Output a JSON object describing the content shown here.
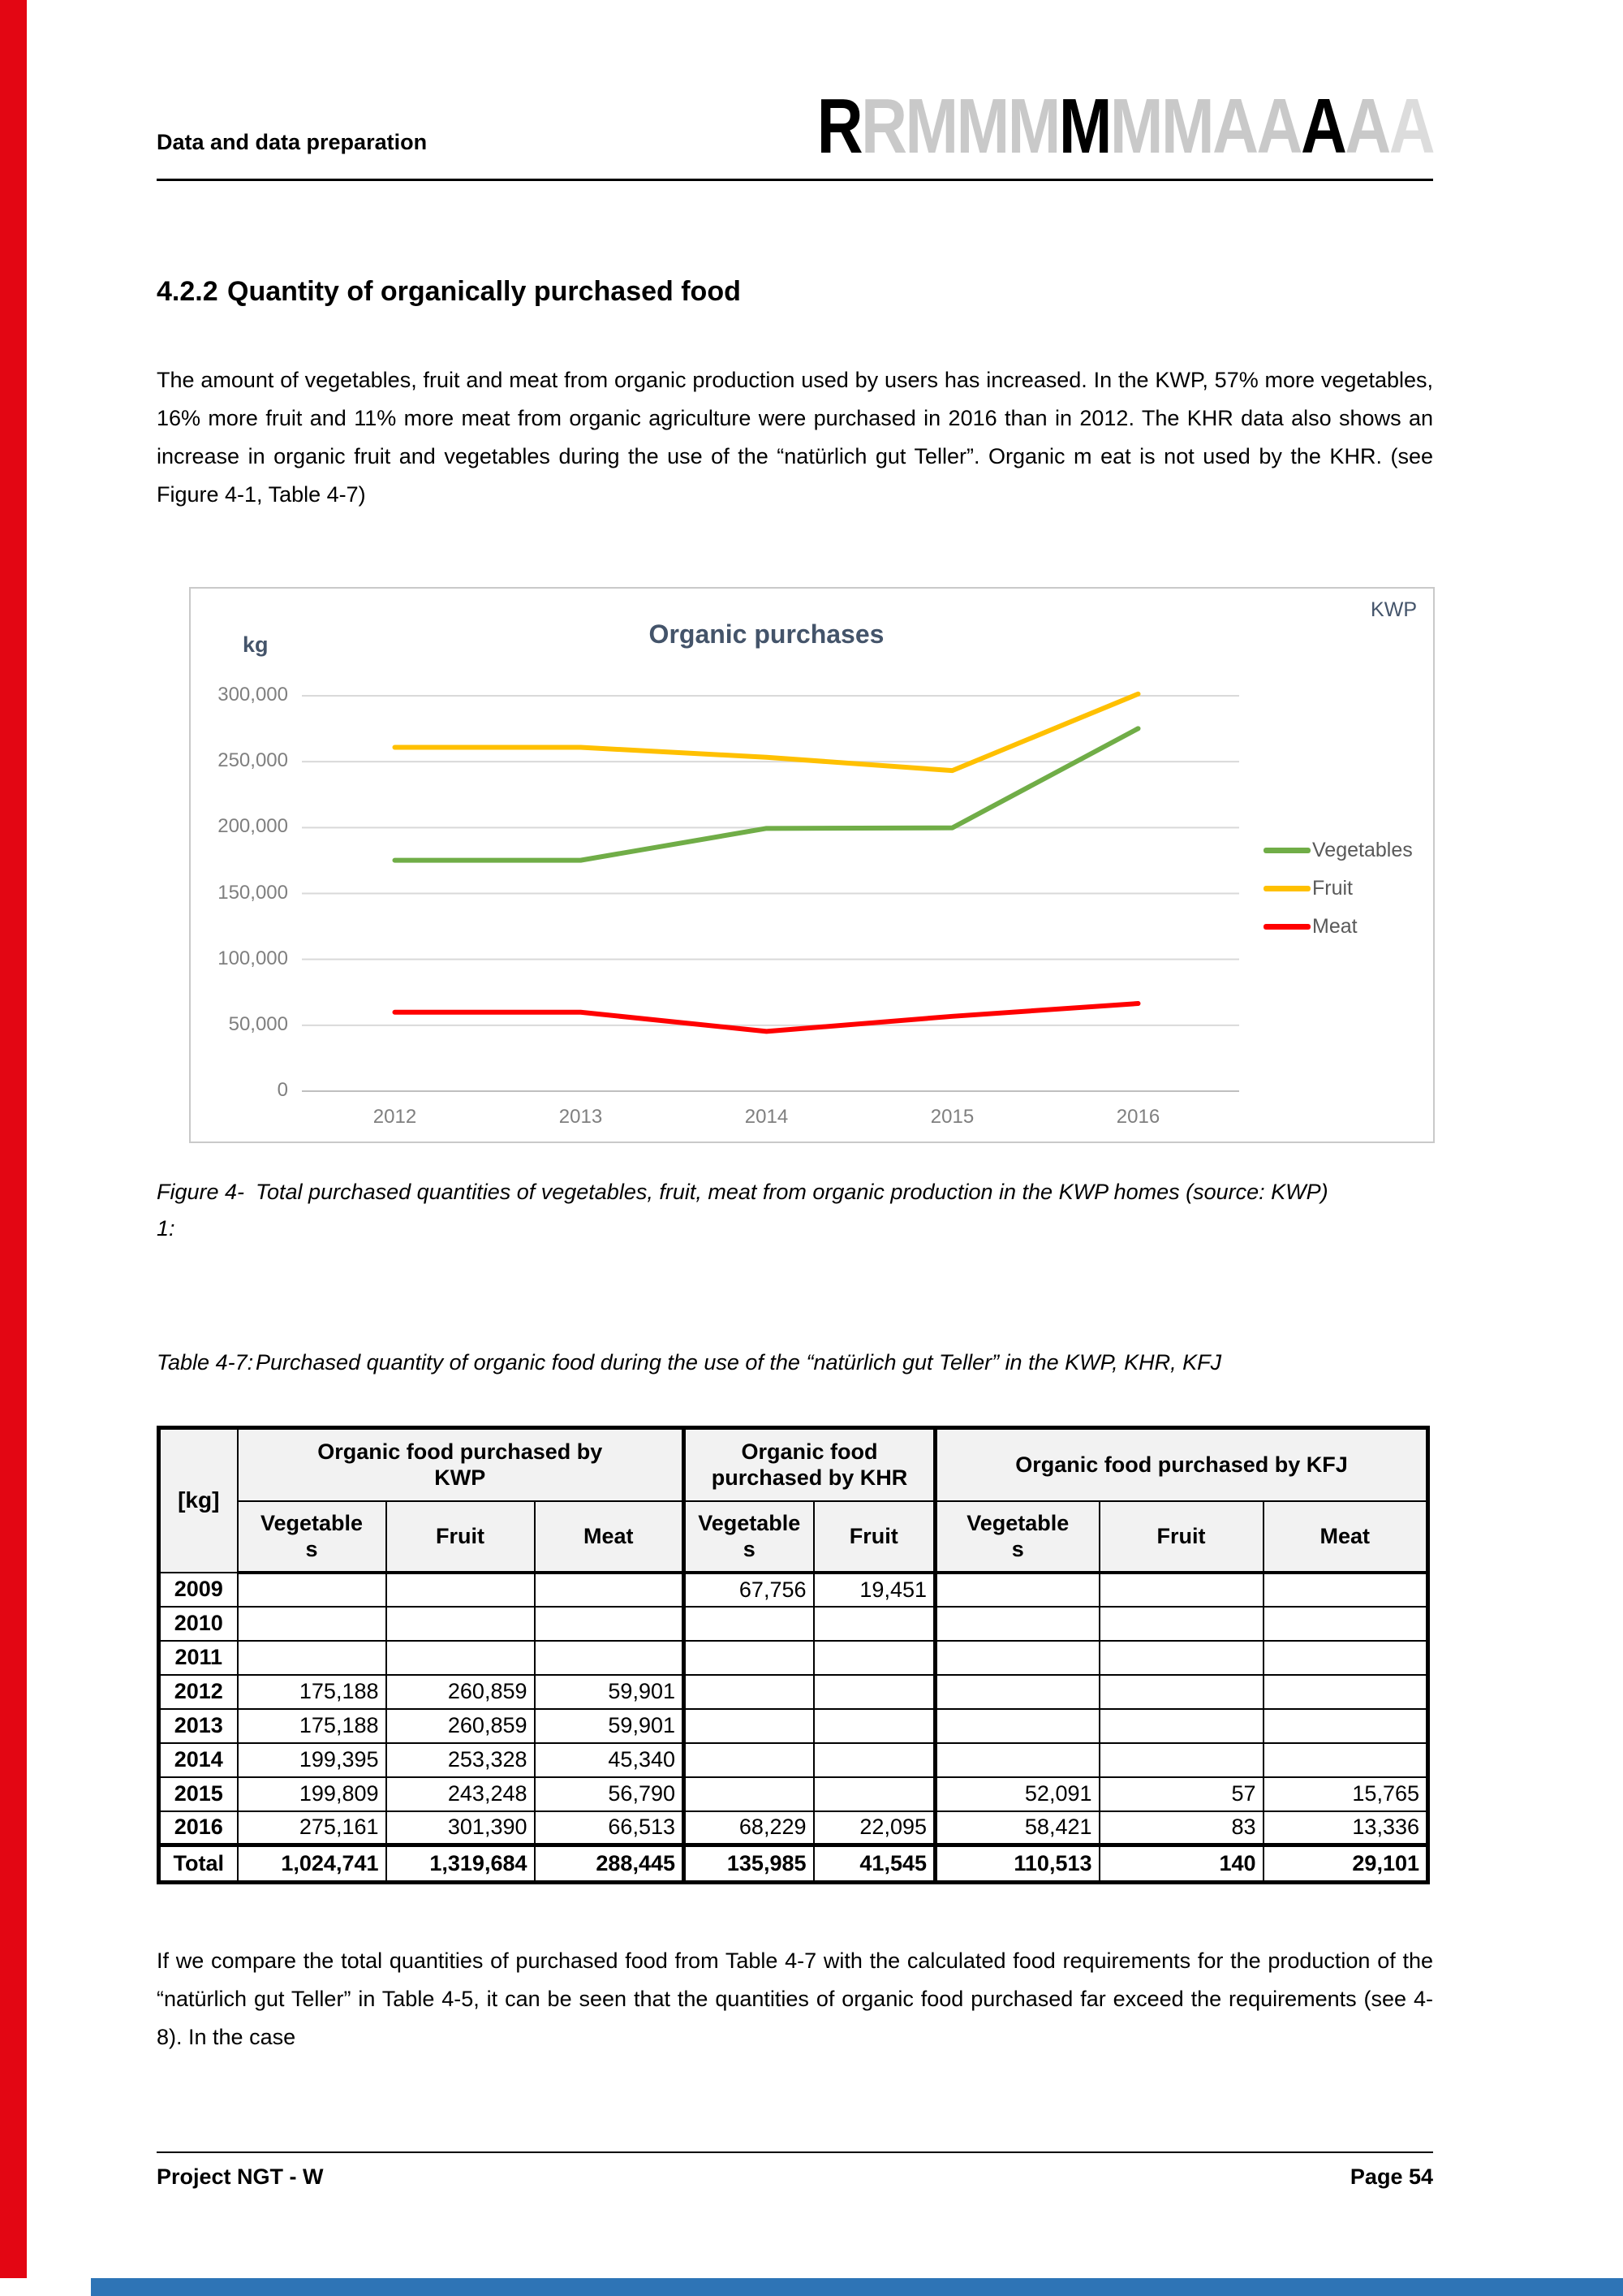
{
  "colors": {
    "accent_red": "#e30613",
    "accent_blue": "#2e74b6",
    "logo_black": "#000000",
    "logo_gray": "#c9c9c9",
    "logo_gray_light": "#dcdcdc",
    "table_header_bg": "#f2f2f2"
  },
  "header": {
    "running_title": "Data and data preparation",
    "logo_letters": [
      {
        "ch": "R",
        "shade": "black"
      },
      {
        "ch": "R",
        "shade": "gray"
      },
      {
        "ch": "M",
        "shade": "gray"
      },
      {
        "ch": "M",
        "shade": "gray"
      },
      {
        "ch": "M",
        "shade": "gray"
      },
      {
        "ch": "M",
        "shade": "black"
      },
      {
        "ch": "M",
        "shade": "gray"
      },
      {
        "ch": "M",
        "shade": "gray"
      },
      {
        "ch": "A",
        "shade": "gray"
      },
      {
        "ch": "A",
        "shade": "gray"
      },
      {
        "ch": "A",
        "shade": "black"
      },
      {
        "ch": "A",
        "shade": "gray"
      },
      {
        "ch": "A",
        "shade": "light"
      }
    ]
  },
  "heading": {
    "number": "4.2.2",
    "title": "Quantity of organically purchased food"
  },
  "paragraphs": {
    "intro": "The amount of vegetables, fruit and meat from organic production used by users has increased. In the KWP, 57% more vegetables, 16% more fruit and 11% more meat from organic agriculture were purchased in 2016 than in 2012. The KHR data also shows an increase in organic fruit and vegetables during the use of the “natürlich gut Teller”. Organic m eat is not used by the KHR. (see Figure 4-1, Table 4-7)",
    "closing": "If we compare the total quantities of purchased food from Table 4-7 with the calculated food requirements for the production of the “natürlich gut Teller” in Table 4-5, it can be seen that the quantities of organic food purchased far exceed the requirements (see 4-8). In the case"
  },
  "chart_data": {
    "type": "line",
    "title": "Organic purchases",
    "unit_label": "kg",
    "corner_label": "KWP",
    "categories": [
      "2012",
      "2013",
      "2014",
      "2015",
      "2016"
    ],
    "series": [
      {
        "name": "Vegetables",
        "color": "#70ad47",
        "values": [
          175188,
          175188,
          199395,
          199809,
          275161
        ]
      },
      {
        "name": "Fruit",
        "color": "#ffc000",
        "values": [
          260859,
          260859,
          253328,
          243248,
          301390
        ]
      },
      {
        "name": "Meat",
        "color": "#ff0000",
        "values": [
          59901,
          59901,
          45340,
          56790,
          66513
        ]
      }
    ],
    "ylim": [
      0,
      300000
    ],
    "ytick_labels": [
      "0",
      "50,000",
      "100,000",
      "150,000",
      "200,000",
      "250,000",
      "300,000"
    ],
    "grid": true,
    "legend_position": "right",
    "grid_color": "#d9d9d9",
    "axis_line_color": "#bfbfbf",
    "label_color": "#7f7f7f",
    "legend_text_color": "#595959",
    "title_color": "#44546a"
  },
  "figure_caption": {
    "label": "Figure 4-1:",
    "text": "Total purchased quantities of vegetables, fruit, meat from organic production in the KWP homes (source: KWP)"
  },
  "table_caption": {
    "label": "Table 4-7:",
    "text": "Purchased quantity of organic food during the use of the “natürlich gut Teller” in the KWP, KHR, KFJ"
  },
  "table": {
    "unit_header": "[kg]",
    "groups": [
      {
        "label": "Organic food purchased by KWP",
        "cols": [
          "Vegetables",
          "Fruit",
          "Meat"
        ]
      },
      {
        "label": "Organic food purchased by KHR",
        "cols": [
          "Vegetables",
          "Fruit"
        ]
      },
      {
        "label": "Organic food purchased by KFJ",
        "cols": [
          "Vegetables",
          "Fruit",
          "Meat"
        ]
      }
    ],
    "rows": [
      {
        "year": "2009",
        "cells": [
          "",
          "",
          "",
          "67,756",
          "19,451",
          "",
          "",
          ""
        ]
      },
      {
        "year": "2010",
        "cells": [
          "",
          "",
          "",
          "",
          "",
          "",
          "",
          ""
        ]
      },
      {
        "year": "2011",
        "cells": [
          "",
          "",
          "",
          "",
          "",
          "",
          "",
          ""
        ]
      },
      {
        "year": "2012",
        "cells": [
          "175,188",
          "260,859",
          "59,901",
          "",
          "",
          "",
          "",
          ""
        ]
      },
      {
        "year": "2013",
        "cells": [
          "175,188",
          "260,859",
          "59,901",
          "",
          "",
          "",
          "",
          ""
        ]
      },
      {
        "year": "2014",
        "cells": [
          "199,395",
          "253,328",
          "45,340",
          "",
          "",
          "",
          "",
          ""
        ]
      },
      {
        "year": "2015",
        "cells": [
          "199,809",
          "243,248",
          "56,790",
          "",
          "",
          "52,091",
          "57",
          "15,765"
        ]
      },
      {
        "year": "2016",
        "cells": [
          "275,161",
          "301,390",
          "66,513",
          "68,229",
          "22,095",
          "58,421",
          "83",
          "13,336"
        ]
      }
    ],
    "total": {
      "label": "Total",
      "cells": [
        "1,024,741",
        "1,319,684",
        "288,445",
        "135,985",
        "41,545",
        "110,513",
        "140",
        "29,101"
      ]
    }
  },
  "footer": {
    "left": "Project NGT - W",
    "right": "Page 54"
  }
}
